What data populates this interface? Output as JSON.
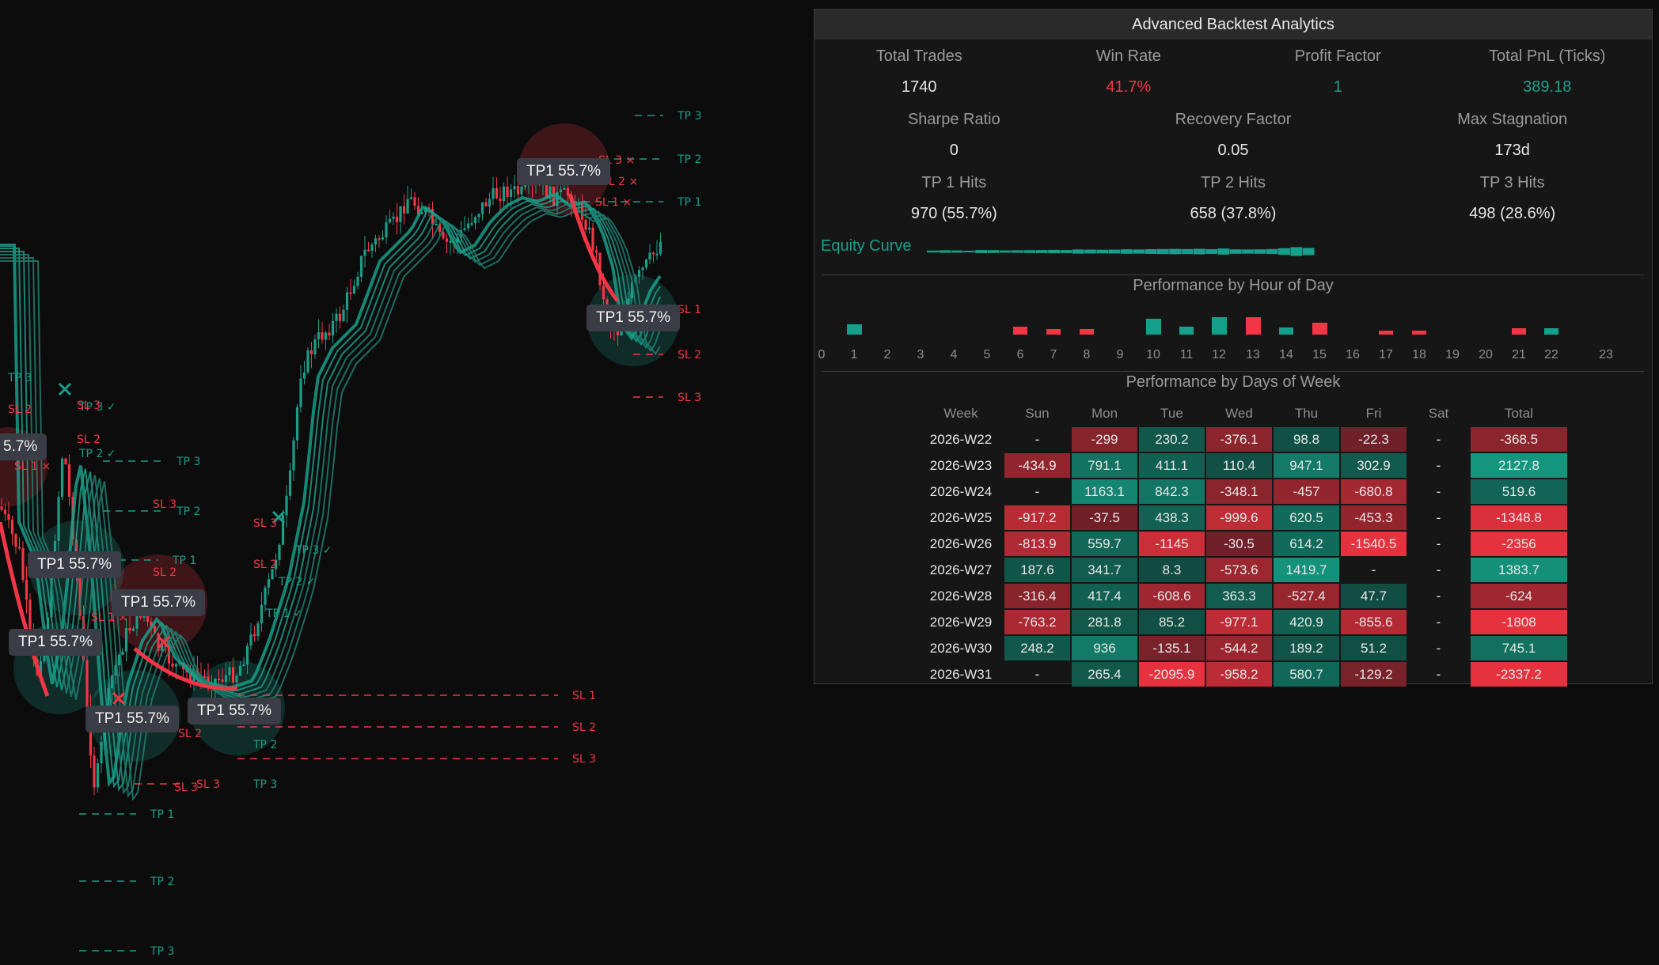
{
  "chart": {
    "badge_text": "TP1 55.7%",
    "levels": {
      "tp1": "TP 1",
      "tp2": "TP 2",
      "tp3": "TP 3",
      "sl1": "SL 1",
      "sl2": "SL 2",
      "sl3": "SL 3",
      "sl1x": "SL 1 ×",
      "sl2x": "SL 2 ×",
      "sl3x": "SL 3 ×",
      "tp1c": "TP 1 ✓",
      "tp2c": "TP 2 ✓",
      "tp3c": "TP 3 ✓"
    },
    "partial_badge_text": "5.7%",
    "colors": {
      "bull": "#1a9e88",
      "bear": "#f23645",
      "background": "#0c0c0d"
    }
  },
  "panel": {
    "title": "Advanced Backtest Analytics",
    "row1": [
      {
        "label": "Total Trades",
        "value": "1740",
        "color": "default"
      },
      {
        "label": "Win Rate",
        "value": "41.7%",
        "color": "red"
      },
      {
        "label": "Profit Factor",
        "value": "1",
        "color": "teal"
      },
      {
        "label": "Total PnL (Ticks)",
        "value": "389.18",
        "color": "teal"
      }
    ],
    "row2": [
      {
        "label": "Sharpe Ratio",
        "value": "0"
      },
      {
        "label": "Recovery Factor",
        "value": "0.05"
      },
      {
        "label": "Max Stagnation",
        "value": "173d"
      }
    ],
    "row3": [
      {
        "label": "TP 1 Hits",
        "value": "970 (55.7%)"
      },
      {
        "label": "TP 2 Hits",
        "value": "658 (37.8%)"
      },
      {
        "label": "TP 3 Hits",
        "value": "498 (28.6%)"
      }
    ],
    "equity_label": "Equity Curve",
    "equity_levels": [
      0.35,
      0.45,
      0.4,
      0.3,
      0.55,
      0.5,
      0.4,
      0.45,
      0.5,
      0.55,
      0.6,
      0.55,
      0.75,
      0.7,
      0.65,
      0.7,
      0.8,
      0.75,
      0.85,
      0.9,
      0.95,
      0.9,
      1.0,
      0.85,
      1.1,
      0.8,
      0.75,
      0.8,
      0.9,
      1.2,
      1.6,
      1.3
    ],
    "hour_title": "Performance by Hour of Day",
    "hours": [
      "0",
      "1",
      "2",
      "3",
      "4",
      "5",
      "6",
      "7",
      "8",
      "9",
      "10",
      "11",
      "12",
      "13",
      "14",
      "15",
      "16",
      "17",
      "18",
      "19",
      "20",
      "21",
      "22",
      "23"
    ],
    "hour_values": [
      0,
      0.6,
      0,
      0,
      0,
      0,
      -0.45,
      -0.3,
      -0.3,
      0,
      0.9,
      0.45,
      1.0,
      -1.0,
      0.4,
      -0.7,
      0,
      -0.2,
      -0.2,
      0,
      0,
      -0.35,
      0.35,
      0
    ],
    "dow_title": "Performance by Days of Week",
    "dow_headers": [
      "Week",
      "Sun",
      "Mon",
      "Tue",
      "Wed",
      "Thu",
      "Fri",
      "Sat",
      "Total"
    ],
    "dow_rows": [
      {
        "week": "2026-W22",
        "cells": [
          "-",
          "-299",
          "230.2",
          "-376.1",
          "98.8",
          "-22.3",
          "-"
        ],
        "total": "-368.5"
      },
      {
        "week": "2026-W23",
        "cells": [
          "-434.9",
          "791.1",
          "411.1",
          "110.4",
          "947.1",
          "302.9",
          "-"
        ],
        "total": "2127.8"
      },
      {
        "week": "2026-W24",
        "cells": [
          "-",
          "1163.1",
          "842.3",
          "-348.1",
          "-457",
          "-680.8",
          "-"
        ],
        "total": "519.6"
      },
      {
        "week": "2026-W25",
        "cells": [
          "-917.2",
          "-37.5",
          "438.3",
          "-999.6",
          "620.5",
          "-453.3",
          "-"
        ],
        "total": "-1348.8"
      },
      {
        "week": "2026-W26",
        "cells": [
          "-813.9",
          "559.7",
          "-1145",
          "-30.5",
          "614.2",
          "-1540.5",
          "-"
        ],
        "total": "-2356"
      },
      {
        "week": "2026-W27",
        "cells": [
          "187.6",
          "341.7",
          "8.3",
          "-573.6",
          "1419.7",
          "-",
          "-"
        ],
        "total": "1383.7"
      },
      {
        "week": "2026-W28",
        "cells": [
          "-316.4",
          "417.4",
          "-608.6",
          "363.3",
          "-527.4",
          "47.7",
          "-"
        ],
        "total": "-624"
      },
      {
        "week": "2026-W29",
        "cells": [
          "-763.2",
          "281.8",
          "85.2",
          "-977.1",
          "420.9",
          "-855.6",
          "-"
        ],
        "total": "-1808"
      },
      {
        "week": "2026-W30",
        "cells": [
          "248.2",
          "936",
          "-135.1",
          "-544.2",
          "189.2",
          "51.2",
          "-"
        ],
        "total": "745.1"
      },
      {
        "week": "2026-W31",
        "cells": [
          "-",
          "265.4",
          "-2095.9",
          "-958.2",
          "580.7",
          "-129.2",
          "-"
        ],
        "total": "-2337.2"
      }
    ]
  }
}
